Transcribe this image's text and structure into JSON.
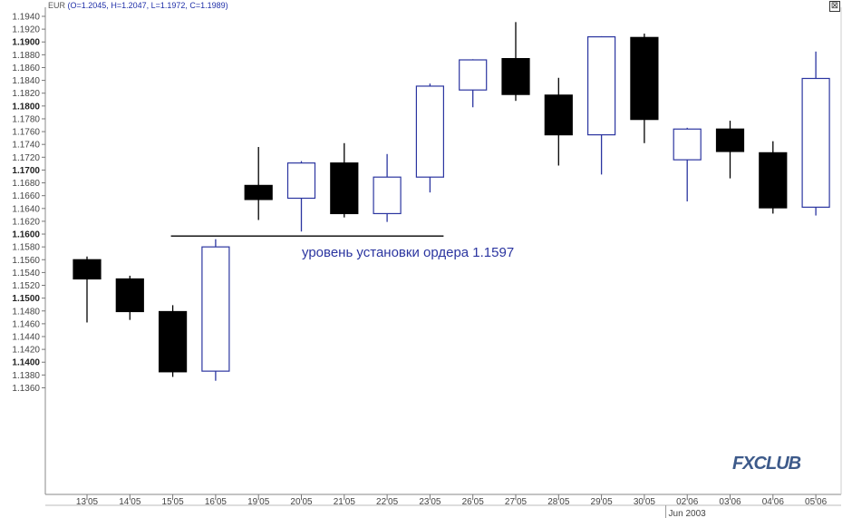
{
  "window": {
    "symbol": "EUR",
    "ohlc_text": "(O=1.2045, H=1.2047, L=1.1972, C=1.1989)",
    "close_glyph": "⊠"
  },
  "logo_text": "FXCLUB",
  "chart_data": {
    "type": "candlestick",
    "colors": {
      "bear_fill": "#000000",
      "bull_fill": "#ffffff",
      "bull_stroke": "#2b35a0",
      "annotation": "#2b35a0"
    },
    "ylim": [
      1.135,
      1.195
    ],
    "y_ticks": [
      {
        "v": 1.194,
        "label": "1.1940",
        "bold": false
      },
      {
        "v": 1.192,
        "label": "1.1920",
        "bold": false
      },
      {
        "v": 1.19,
        "label": "1.1900",
        "bold": true
      },
      {
        "v": 1.188,
        "label": "1.1880",
        "bold": false
      },
      {
        "v": 1.186,
        "label": "1.1860",
        "bold": false
      },
      {
        "v": 1.184,
        "label": "1.1840",
        "bold": false
      },
      {
        "v": 1.182,
        "label": "1.1820",
        "bold": false
      },
      {
        "v": 1.18,
        "label": "1.1800",
        "bold": true
      },
      {
        "v": 1.178,
        "label": "1.1780",
        "bold": false
      },
      {
        "v": 1.176,
        "label": "1.1760",
        "bold": false
      },
      {
        "v": 1.174,
        "label": "1.1740",
        "bold": false
      },
      {
        "v": 1.172,
        "label": "1.1720",
        "bold": false
      },
      {
        "v": 1.17,
        "label": "1.1700",
        "bold": true
      },
      {
        "v": 1.168,
        "label": "1.1680",
        "bold": false
      },
      {
        "v": 1.166,
        "label": "1.1660",
        "bold": false
      },
      {
        "v": 1.164,
        "label": "1.1640",
        "bold": false
      },
      {
        "v": 1.162,
        "label": "1.1620",
        "bold": false
      },
      {
        "v": 1.16,
        "label": "1.1600",
        "bold": true
      },
      {
        "v": 1.158,
        "label": "1.1580",
        "bold": false
      },
      {
        "v": 1.156,
        "label": "1.1560",
        "bold": false
      },
      {
        "v": 1.154,
        "label": "1.1540",
        "bold": false
      },
      {
        "v": 1.152,
        "label": "1.1520",
        "bold": false
      },
      {
        "v": 1.15,
        "label": "1.1500",
        "bold": true
      },
      {
        "v": 1.148,
        "label": "1.1480",
        "bold": false
      },
      {
        "v": 1.146,
        "label": "1.1460",
        "bold": false
      },
      {
        "v": 1.144,
        "label": "1.1440",
        "bold": false
      },
      {
        "v": 1.142,
        "label": "1.1420",
        "bold": false
      },
      {
        "v": 1.14,
        "label": "1.1400",
        "bold": true
      },
      {
        "v": 1.138,
        "label": "1.1380",
        "bold": false
      },
      {
        "v": 1.136,
        "label": "1.1360",
        "bold": false
      }
    ],
    "candles": [
      {
        "date": "13'05",
        "o": 1.156,
        "h": 1.1565,
        "l": 1.1462,
        "c": 1.153
      },
      {
        "date": "14'05",
        "o": 1.153,
        "h": 1.1535,
        "l": 1.1466,
        "c": 1.1479
      },
      {
        "date": "15'05",
        "o": 1.1479,
        "h": 1.1489,
        "l": 1.1377,
        "c": 1.1385
      },
      {
        "date": "16'05",
        "o": 1.1386,
        "h": 1.1592,
        "l": 1.1371,
        "c": 1.158
      },
      {
        "date": "19'05",
        "o": 1.1676,
        "h": 1.1736,
        "l": 1.1622,
        "c": 1.1654
      },
      {
        "date": "20'05",
        "o": 1.1656,
        "h": 1.1714,
        "l": 1.1604,
        "c": 1.1711
      },
      {
        "date": "21'05",
        "o": 1.1711,
        "h": 1.1742,
        "l": 1.1626,
        "c": 1.1632
      },
      {
        "date": "22'05",
        "o": 1.1632,
        "h": 1.1725,
        "l": 1.1619,
        "c": 1.1689
      },
      {
        "date": "23'05",
        "o": 1.1689,
        "h": 1.1835,
        "l": 1.1665,
        "c": 1.1831
      },
      {
        "date": "26'05",
        "o": 1.1825,
        "h": 1.1873,
        "l": 1.1798,
        "c": 1.1872
      },
      {
        "date": "27'05",
        "o": 1.1874,
        "h": 1.1931,
        "l": 1.1808,
        "c": 1.1818
      },
      {
        "date": "28'05",
        "o": 1.1817,
        "h": 1.1844,
        "l": 1.1707,
        "c": 1.1755
      },
      {
        "date": "29'05",
        "o": 1.1755,
        "h": 1.1909,
        "l": 1.1693,
        "c": 1.1908
      },
      {
        "date": "30'05",
        "o": 1.1907,
        "h": 1.1913,
        "l": 1.1742,
        "c": 1.1779
      },
      {
        "date": "02'06",
        "o": 1.1716,
        "h": 1.1766,
        "l": 1.1651,
        "c": 1.1764
      },
      {
        "date": "03'06",
        "o": 1.1764,
        "h": 1.1777,
        "l": 1.1687,
        "c": 1.1729
      },
      {
        "date": "04'06",
        "o": 1.1727,
        "h": 1.1745,
        "l": 1.1632,
        "c": 1.1641
      },
      {
        "date": "05'06",
        "o": 1.1642,
        "h": 1.1885,
        "l": 1.1629,
        "c": 1.1843
      }
    ],
    "period_label": "Jun 2003",
    "order_level": {
      "value": 1.1597,
      "from": "15'05",
      "to": "23'05",
      "text": "уровень установки ордера 1.1597"
    },
    "grid": false,
    "legend": false
  }
}
